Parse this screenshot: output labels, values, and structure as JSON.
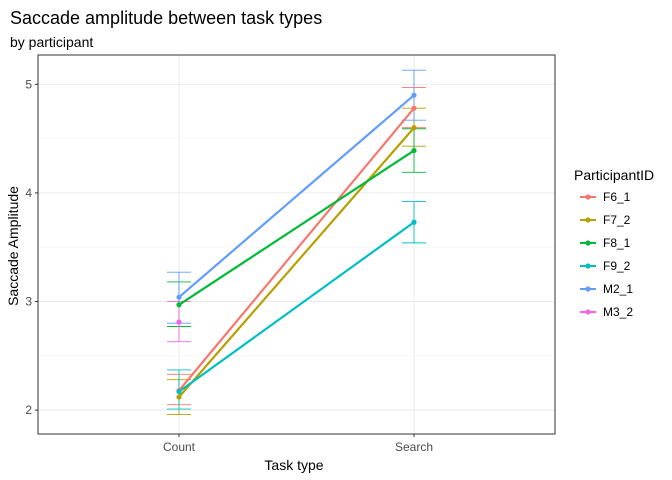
{
  "chart_data": {
    "type": "line",
    "title": "Saccade amplitude between task types",
    "subtitle": "by participant",
    "xlabel": "Task type",
    "ylabel": "Saccade Amplitude",
    "categories": [
      "Count",
      "Search"
    ],
    "ylim": [
      1.78,
      5.27
    ],
    "yticks": [
      2,
      3,
      4,
      5
    ],
    "grid": true,
    "legend": {
      "title": "ParticipantID",
      "position": "right"
    },
    "series": [
      {
        "name": "F6_1",
        "color": "#F8766D",
        "values": [
          2.18,
          4.78
        ],
        "err": [
          [
            2.05,
            2.33
          ],
          [
            4.6,
            4.97
          ]
        ]
      },
      {
        "name": "F7_2",
        "color": "#B79F00",
        "values": [
          2.12,
          4.6
        ],
        "err": [
          [
            1.96,
            2.28
          ],
          [
            4.43,
            4.78
          ]
        ]
      },
      {
        "name": "F8_1",
        "color": "#00BA38",
        "values": [
          2.97,
          4.39
        ],
        "err": [
          [
            2.77,
            3.18
          ],
          [
            4.19,
            4.59
          ]
        ]
      },
      {
        "name": "F9_2",
        "color": "#00BFC4",
        "values": [
          2.17,
          3.73
        ],
        "err": [
          [
            2.01,
            2.37
          ],
          [
            3.54,
            3.92
          ]
        ]
      },
      {
        "name": "M2_1",
        "color": "#619CFF",
        "values": [
          3.04,
          4.9
        ],
        "err": [
          [
            2.8,
            3.27
          ],
          [
            4.67,
            5.13
          ]
        ]
      },
      {
        "name": "M3_2",
        "color": "#F564E3",
        "values": [
          2.81,
          null
        ],
        "err": [
          [
            2.63,
            3.0
          ],
          null
        ]
      }
    ]
  }
}
